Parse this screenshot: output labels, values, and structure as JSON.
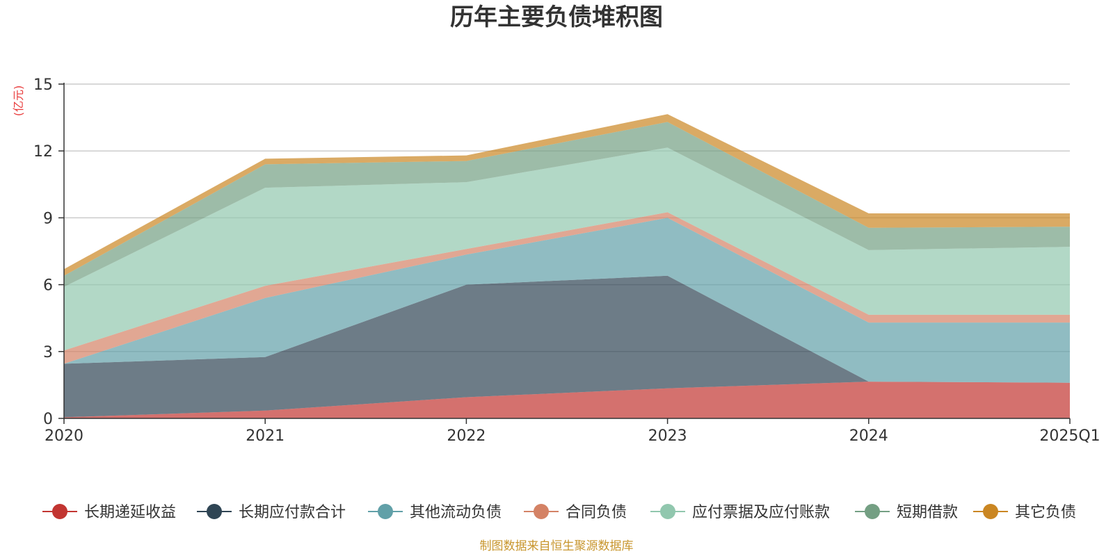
{
  "chart_data": {
    "type": "area",
    "stacked": true,
    "title": "历年主要负债堆积图",
    "ylabel": "(亿元)",
    "xlabel": "",
    "categories": [
      "2020",
      "2021",
      "2022",
      "2023",
      "2024",
      "2025Q1"
    ],
    "yticks": [
      "0",
      "3",
      "6",
      "9",
      "12",
      "15"
    ],
    "ylim": [
      0,
      15
    ],
    "grid": true,
    "legend_position": "bottom",
    "series": [
      {
        "name": "长期递延收益",
        "color": "#c23531",
        "values": [
          0.05,
          0.35,
          0.95,
          1.35,
          1.65,
          1.6
        ]
      },
      {
        "name": "长期应付款合计",
        "color": "#2f4554",
        "values": [
          2.4,
          2.4,
          5.05,
          5.05,
          0.0,
          0.0
        ]
      },
      {
        "name": "其他流动负债",
        "color": "#61a0a8",
        "values": [
          0.0,
          2.65,
          1.35,
          2.6,
          2.65,
          2.7
        ]
      },
      {
        "name": "合同负债",
        "color": "#d48265",
        "values": [
          0.6,
          0.55,
          0.25,
          0.25,
          0.35,
          0.35
        ]
      },
      {
        "name": "应付票据及应付账款",
        "color": "#91c7ae",
        "values": [
          2.85,
          4.4,
          3.0,
          2.9,
          2.9,
          3.05
        ]
      },
      {
        "name": "短期借款",
        "color": "#749f83",
        "values": [
          0.5,
          1.05,
          0.95,
          1.15,
          1.0,
          0.9
        ]
      },
      {
        "name": "其它负债",
        "color": "#ca8622",
        "values": [
          0.3,
          0.25,
          0.25,
          0.35,
          0.65,
          0.6
        ]
      }
    ]
  },
  "source": "制图数据来自恒生聚源数据库"
}
